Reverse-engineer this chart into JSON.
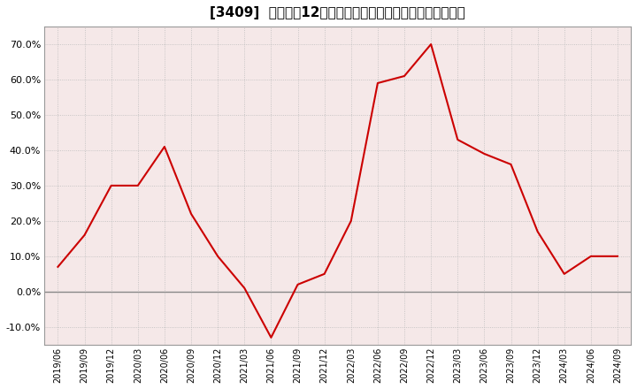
{
  "title": "[3409]  売上高の12か月移動合計の対前年同期増減率の推移",
  "line_color": "#cc0000",
  "background_color": "#ffffff",
  "plot_bg_color": "#f5e8e8",
  "grid_color": "#bbbbbb",
  "zero_line_color": "#888888",
  "ylim": [
    -0.15,
    0.75
  ],
  "yticks": [
    -0.1,
    0.0,
    0.1,
    0.2,
    0.3,
    0.4,
    0.5,
    0.6,
    0.7
  ],
  "dates": [
    "2019/06",
    "2019/09",
    "2019/12",
    "2020/03",
    "2020/06",
    "2020/09",
    "2020/12",
    "2021/03",
    "2021/06",
    "2021/09",
    "2021/12",
    "2022/03",
    "2022/06",
    "2022/09",
    "2022/12",
    "2023/03",
    "2023/06",
    "2023/09",
    "2023/12",
    "2024/03",
    "2024/06",
    "2024/09"
  ],
  "values": [
    0.07,
    0.16,
    0.3,
    0.3,
    0.41,
    0.22,
    0.1,
    0.01,
    -0.13,
    0.02,
    0.05,
    0.2,
    0.59,
    0.61,
    0.7,
    0.43,
    0.39,
    0.36,
    0.17,
    0.05,
    0.1,
    0.1
  ],
  "title_fontsize": 11,
  "tick_fontsize": 8,
  "xtick_fontsize": 7,
  "linewidth": 1.5
}
